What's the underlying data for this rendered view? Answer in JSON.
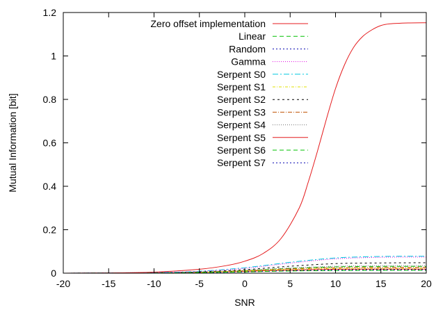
{
  "chart_data": {
    "type": "line",
    "title": "",
    "xlabel": "SNR",
    "ylabel": "Mutual Information [bit]",
    "xlim": [
      -20,
      20
    ],
    "ylim": [
      0,
      1.2
    ],
    "xticks": [
      -20,
      -15,
      -10,
      -5,
      0,
      5,
      10,
      15,
      20
    ],
    "yticks": [
      0,
      0.2,
      0.4,
      0.6,
      0.8,
      1,
      1.2
    ],
    "grid": false,
    "legend_position": "top-center",
    "series": [
      {
        "name": "Zero offset implementation",
        "color": "#e41a1c",
        "dash": "none",
        "x": [
          -20,
          -15,
          -10,
          -5,
          -2,
          0,
          2,
          4,
          6,
          7,
          8,
          9,
          10,
          11,
          12,
          13,
          14,
          15,
          16,
          18,
          20
        ],
        "y": [
          0.0,
          0.001,
          0.005,
          0.018,
          0.035,
          0.055,
          0.09,
          0.16,
          0.3,
          0.42,
          0.56,
          0.71,
          0.85,
          0.96,
          1.04,
          1.09,
          1.12,
          1.14,
          1.148,
          1.152,
          1.153
        ]
      },
      {
        "name": "Linear",
        "color": "#00c000",
        "dash": "6,4",
        "x": [
          -20,
          -10,
          -5,
          0,
          5,
          10,
          15,
          20
        ],
        "y": [
          0.0,
          0.001,
          0.003,
          0.006,
          0.01,
          0.012,
          0.013,
          0.013
        ]
      },
      {
        "name": "Random",
        "color": "#0000b0",
        "dash": "2,3",
        "x": [
          -20,
          -10,
          -5,
          0,
          5,
          10,
          15,
          20
        ],
        "y": [
          0.0,
          0.001,
          0.003,
          0.007,
          0.012,
          0.015,
          0.016,
          0.016
        ]
      },
      {
        "name": "Gamma",
        "color": "#e000e0",
        "dash": "1,2",
        "x": [
          -20,
          -10,
          -5,
          0,
          5,
          10,
          15,
          20
        ],
        "y": [
          0.0,
          0.003,
          0.008,
          0.022,
          0.046,
          0.066,
          0.073,
          0.074
        ]
      },
      {
        "name": "Serpent S0",
        "color": "#00c8e0",
        "dash": "8,3,2,3",
        "x": [
          -20,
          -10,
          -5,
          0,
          5,
          10,
          15,
          20
        ],
        "y": [
          0.0,
          0.003,
          0.009,
          0.025,
          0.05,
          0.07,
          0.077,
          0.078
        ]
      },
      {
        "name": "Serpent S1",
        "color": "#e0e000",
        "dash": "4,2,1,2",
        "x": [
          -20,
          -10,
          -5,
          0,
          5,
          10,
          15,
          20
        ],
        "y": [
          0.0,
          0.001,
          0.004,
          0.01,
          0.017,
          0.021,
          0.022,
          0.022
        ]
      },
      {
        "name": "Serpent S2",
        "color": "#000000",
        "dash": "3,4",
        "x": [
          -20,
          -10,
          -5,
          0,
          5,
          10,
          15,
          20
        ],
        "y": [
          0.0,
          0.002,
          0.006,
          0.016,
          0.032,
          0.044,
          0.047,
          0.048
        ]
      },
      {
        "name": "Serpent S3",
        "color": "#c05000",
        "dash": "6,2,1,2",
        "x": [
          -20,
          -10,
          -5,
          0,
          5,
          10,
          15,
          20
        ],
        "y": [
          0.0,
          0.001,
          0.004,
          0.011,
          0.02,
          0.025,
          0.027,
          0.027
        ]
      },
      {
        "name": "Serpent S4",
        "color": "#707070",
        "dash": "1,2",
        "x": [
          -20,
          -10,
          -5,
          0,
          5,
          10,
          15,
          20
        ],
        "y": [
          0.0,
          0.002,
          0.005,
          0.013,
          0.024,
          0.032,
          0.035,
          0.035
        ]
      },
      {
        "name": "Serpent S5",
        "color": "#e41a1c",
        "dash": "none",
        "x": [
          -20,
          -10,
          -5,
          0,
          5,
          10,
          15,
          20
        ],
        "y": [
          0.0,
          0.001,
          0.003,
          0.008,
          0.014,
          0.018,
          0.019,
          0.019
        ]
      },
      {
        "name": "Serpent S6",
        "color": "#00c000",
        "dash": "6,4",
        "x": [
          -20,
          -10,
          -5,
          0,
          5,
          10,
          15,
          20
        ],
        "y": [
          0.0,
          0.002,
          0.005,
          0.012,
          0.022,
          0.029,
          0.031,
          0.031
        ]
      },
      {
        "name": "Serpent S7",
        "color": "#0000b0",
        "dash": "2,3",
        "x": [
          -20,
          -10,
          -5,
          0,
          5,
          10,
          15,
          20
        ],
        "y": [
          0.0,
          0.001,
          0.002,
          0.006,
          0.011,
          0.014,
          0.015,
          0.015
        ]
      }
    ]
  }
}
